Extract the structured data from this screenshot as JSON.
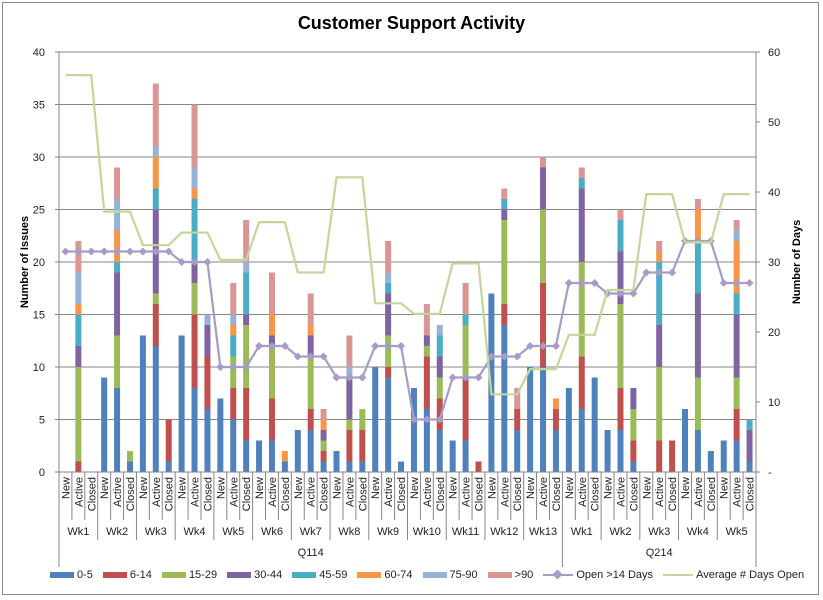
{
  "chart_data": {
    "type": "bar",
    "stacked": true,
    "title": "Customer Support Activity",
    "ylabel": "Number of Issues",
    "y2label": "Number of Days",
    "ylim": [
      0,
      40
    ],
    "y2lim": [
      0,
      60
    ],
    "yticks": [
      "0",
      "5",
      "10",
      "15",
      "20",
      "25",
      "30",
      "35",
      "40"
    ],
    "y2ticks": [
      "-",
      "10",
      "20",
      "30",
      "40",
      "50",
      "60"
    ],
    "grid": true,
    "legend": "bottom",
    "statuses": [
      "New",
      "Active",
      "Closed"
    ],
    "quarters": [
      {
        "label": "Q114",
        "weeks": [
          "Wk1",
          "Wk2",
          "Wk3",
          "Wk4",
          "Wk5",
          "Wk6",
          "Wk7",
          "Wk8",
          "Wk9",
          "Wk10",
          "Wk11",
          "Wk12",
          "Wk13"
        ]
      },
      {
        "label": "Q214",
        "weeks": [
          "Wk1",
          "Wk2",
          "Wk3",
          "Wk4",
          "Wk5"
        ]
      }
    ],
    "series": [
      {
        "name": "0-5",
        "color": "#4F81BD",
        "values": [
          0,
          0,
          0,
          9,
          8,
          1,
          13,
          12,
          1,
          13,
          8,
          6,
          7,
          5,
          3,
          3,
          3,
          1,
          4,
          4,
          1,
          2,
          1,
          1,
          10,
          9,
          1,
          8,
          6,
          4,
          3,
          3,
          0,
          17,
          14,
          4,
          10,
          10,
          4,
          8,
          6,
          9,
          4,
          4,
          1,
          0,
          0,
          0,
          6,
          4,
          2,
          3,
          3,
          1
        ]
      },
      {
        "name": "6-14",
        "color": "#C0504D",
        "values": [
          0,
          1,
          0,
          0,
          0,
          0,
          0,
          4,
          4,
          0,
          7,
          5,
          0,
          3,
          5,
          0,
          4,
          0,
          0,
          2,
          1,
          0,
          3,
          3,
          0,
          1,
          0,
          0,
          5,
          3,
          0,
          6,
          1,
          0,
          2,
          2,
          0,
          8,
          2,
          0,
          5,
          0,
          0,
          4,
          2,
          0,
          3,
          3,
          0,
          0,
          0,
          0,
          3,
          0
        ]
      },
      {
        "name": "15-29",
        "color": "#9BBB59",
        "values": [
          0,
          9,
          0,
          0,
          5,
          1,
          0,
          1,
          0,
          0,
          3,
          0,
          0,
          3,
          6,
          0,
          5,
          0,
          0,
          5,
          1,
          0,
          1,
          2,
          0,
          3,
          0,
          0,
          1,
          2,
          0,
          5,
          0,
          0,
          8,
          0,
          0,
          7,
          0,
          0,
          9,
          0,
          0,
          8,
          3,
          0,
          7,
          0,
          0,
          5,
          0,
          0,
          3,
          0
        ]
      },
      {
        "name": "30-44",
        "color": "#8064A2",
        "values": [
          0,
          2,
          0,
          0,
          6,
          0,
          0,
          8,
          0,
          0,
          2,
          3,
          0,
          0,
          1,
          0,
          1,
          0,
          0,
          2,
          1,
          0,
          4,
          0,
          0,
          4,
          0,
          0,
          1,
          2,
          0,
          0,
          0,
          0,
          1,
          0,
          0,
          4,
          0,
          0,
          7,
          0,
          0,
          5,
          2,
          0,
          4,
          0,
          0,
          8,
          0,
          0,
          6,
          3
        ]
      },
      {
        "name": "45-59",
        "color": "#4BACC6",
        "values": [
          0,
          3,
          0,
          0,
          1,
          0,
          0,
          2,
          0,
          0,
          6,
          0,
          0,
          2,
          4,
          0,
          0,
          0,
          0,
          0,
          0,
          0,
          0,
          0,
          0,
          1,
          0,
          0,
          0,
          2,
          0,
          1,
          0,
          0,
          1,
          0,
          0,
          0,
          0,
          0,
          1,
          0,
          0,
          3,
          0,
          0,
          6,
          0,
          0,
          5,
          0,
          0,
          2,
          1
        ]
      },
      {
        "name": "60-74",
        "color": "#F79646",
        "values": [
          0,
          1,
          0,
          0,
          3,
          0,
          0,
          3,
          0,
          0,
          1,
          0,
          0,
          1,
          0,
          0,
          2,
          1,
          0,
          1,
          1,
          0,
          0,
          0,
          0,
          0,
          0,
          0,
          0,
          0,
          0,
          0,
          0,
          0,
          0,
          0,
          0,
          0,
          1,
          0,
          0,
          0,
          0,
          0,
          0,
          0,
          1,
          0,
          0,
          3,
          0,
          0,
          5,
          0
        ]
      },
      {
        "name": "75-90",
        "color": "#95B3D7",
        "values": [
          0,
          3,
          0,
          0,
          3,
          0,
          0,
          1,
          0,
          0,
          2,
          1,
          0,
          1,
          1,
          0,
          0,
          0,
          0,
          0,
          0,
          0,
          1,
          0,
          0,
          1,
          0,
          0,
          0,
          1,
          0,
          0,
          0,
          0,
          0,
          0,
          0,
          0,
          0,
          0,
          0,
          0,
          0,
          0,
          0,
          0,
          0,
          0,
          0,
          0,
          0,
          0,
          1,
          0
        ]
      },
      {
        "name": ">90",
        "color": "#D99694",
        "values": [
          0,
          3,
          0,
          0,
          3,
          0,
          0,
          6,
          0,
          0,
          6,
          0,
          0,
          3,
          4,
          0,
          4,
          0,
          0,
          3,
          1,
          0,
          3,
          0,
          0,
          3,
          0,
          0,
          3,
          0,
          0,
          3,
          0,
          0,
          1,
          2,
          0,
          1,
          0,
          0,
          1,
          0,
          0,
          1,
          0,
          0,
          1,
          0,
          0,
          1,
          0,
          0,
          1,
          0
        ]
      }
    ],
    "lines": [
      {
        "name": "Open >14 Days",
        "axis": "left",
        "color": "#A79BC8",
        "marker": "diamond",
        "weekly_values": [
          21,
          21,
          21,
          20,
          10,
          12,
          11,
          9,
          12,
          5,
          9,
          11,
          12,
          18,
          17,
          19,
          22,
          18
        ]
      },
      {
        "name": "Average # Days Open",
        "axis": "right",
        "color": "#C3D69B",
        "marker": "none",
        "weekly_values": [
          56.7,
          37.2,
          32.4,
          34.2,
          30.3,
          35.7,
          28.5,
          42.1,
          24.1,
          22.6,
          29.8,
          11.1,
          14.7,
          19.6,
          26.0,
          39.7,
          32.8,
          39.7
        ]
      }
    ]
  }
}
